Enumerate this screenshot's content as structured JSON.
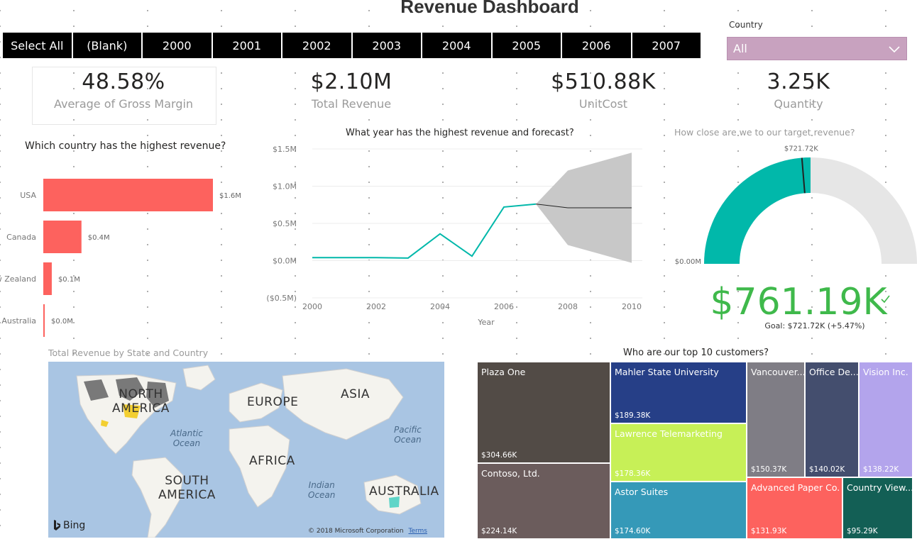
{
  "title": "Revenue Dashboard",
  "year_slicer": [
    "Select All",
    "(Blank)",
    "2000",
    "2001",
    "2002",
    "2003",
    "2004",
    "2005",
    "2006",
    "2007"
  ],
  "country_filter": {
    "label": "Country",
    "value": "All"
  },
  "kpis": [
    {
      "value": "48.58%",
      "label": "Average of Gross Margin"
    },
    {
      "value": "$2.10M",
      "label": "Total Revenue"
    },
    {
      "value": "$510.88K",
      "label": "UnitCost"
    },
    {
      "value": "3.25K",
      "label": "Quantity"
    }
  ],
  "bar_chart": {
    "title": "Which country has the highest revenue?",
    "chart_data": {
      "type": "bar",
      "orientation": "horizontal",
      "categories": [
        "USA",
        "Canada",
        "New Zealand",
        "Australia"
      ],
      "values": [
        1.6,
        0.36,
        0.08,
        0.01
      ],
      "data_labels": [
        "$1.6M",
        "$0.4M",
        "$0.1M",
        "$0.0M"
      ],
      "xlim": [
        0,
        1.6
      ],
      "color": "#fd625e"
    }
  },
  "line_chart": {
    "title": "What year has the highest revenue and forecast?",
    "chart_data": {
      "type": "line",
      "xlabel": "Year",
      "x": [
        2000,
        2001,
        2002,
        2003,
        2004,
        2005,
        2006,
        2007
      ],
      "series": [
        {
          "values": [
            0.04,
            0.04,
            0.04,
            0.035,
            0.36,
            0.06,
            0.72,
            0.76
          ],
          "color": "#01b8aa"
        }
      ],
      "forecast": {
        "x": [
          2007,
          2008,
          2009,
          2010
        ],
        "values": [
          0.76,
          0.71,
          0.71,
          0.71
        ],
        "upper": [
          0.76,
          1.21,
          1.33,
          1.45
        ],
        "lower": [
          0.76,
          0.21,
          0.09,
          -0.03
        ]
      },
      "xticks": [
        "2000",
        "2002",
        "2004",
        "2006",
        "2008",
        "2010"
      ],
      "yticks": [
        "$1.5M",
        "$1.0M",
        "$0.5M",
        "$0.0M",
        "($0.5M)"
      ],
      "xlim": [
        2000,
        2010
      ],
      "ylim": [
        -0.5,
        1.5
      ]
    }
  },
  "gauge": {
    "title": "How close are we to our target revenue?",
    "chart_data": {
      "type": "gauge",
      "value": 761.19,
      "target": 721.72,
      "min": 0,
      "max": 1522.38,
      "value_label": "$761.19K",
      "target_label": "$721.72K",
      "min_label": "$0.00M",
      "goal_text": "Goal: $721.72K (+5.47%)",
      "color": "#01b8aa"
    }
  },
  "map": {
    "title": "Total Revenue by State and Country",
    "labels": {
      "na": "NORTH\nAMERICA",
      "eu": "EUROPE",
      "asia": "ASIA",
      "af": "AFRICA",
      "sa": "SOUTH\nAMERICA",
      "au": "AUSTRALIA"
    },
    "oceans": {
      "atlantic": "Atlantic\nOcean",
      "pacific": "Pacific\nOcean",
      "indian": "Indian\nOcean"
    },
    "bing": "Bing",
    "copyright": "© 2018 Microsoft Corporation",
    "terms": "Terms"
  },
  "treemap": {
    "title": "Who are our top 10 customers?",
    "items": [
      {
        "name": "Plaza One",
        "value": "$304.66K",
        "color": "#524b46"
      },
      {
        "name": "Contoso, Ltd.",
        "value": "$224.14K",
        "color": "#6b5c5c"
      },
      {
        "name": "Mahler State University",
        "value": "$189.38K",
        "color": "#263f87"
      },
      {
        "name": "Lawrence Telemarketing",
        "value": "$178.36K",
        "color": "#c7f057"
      },
      {
        "name": "Astor Suites",
        "value": "$174.60K",
        "color": "#3599b8"
      },
      {
        "name": "Vancouver...",
        "value": "$150.37K",
        "color": "#7f7d85"
      },
      {
        "name": "Office De...",
        "value": "$140.02K",
        "color": "#444e6e"
      },
      {
        "name": "Vision Inc.",
        "value": "$138.22K",
        "color": "#b3a4ec"
      },
      {
        "name": "Advanced Paper Co.",
        "value": "$131.93K",
        "color": "#fd625e"
      },
      {
        "name": "Country View...",
        "value": "$95.29K",
        "color": "#135f55"
      }
    ]
  }
}
